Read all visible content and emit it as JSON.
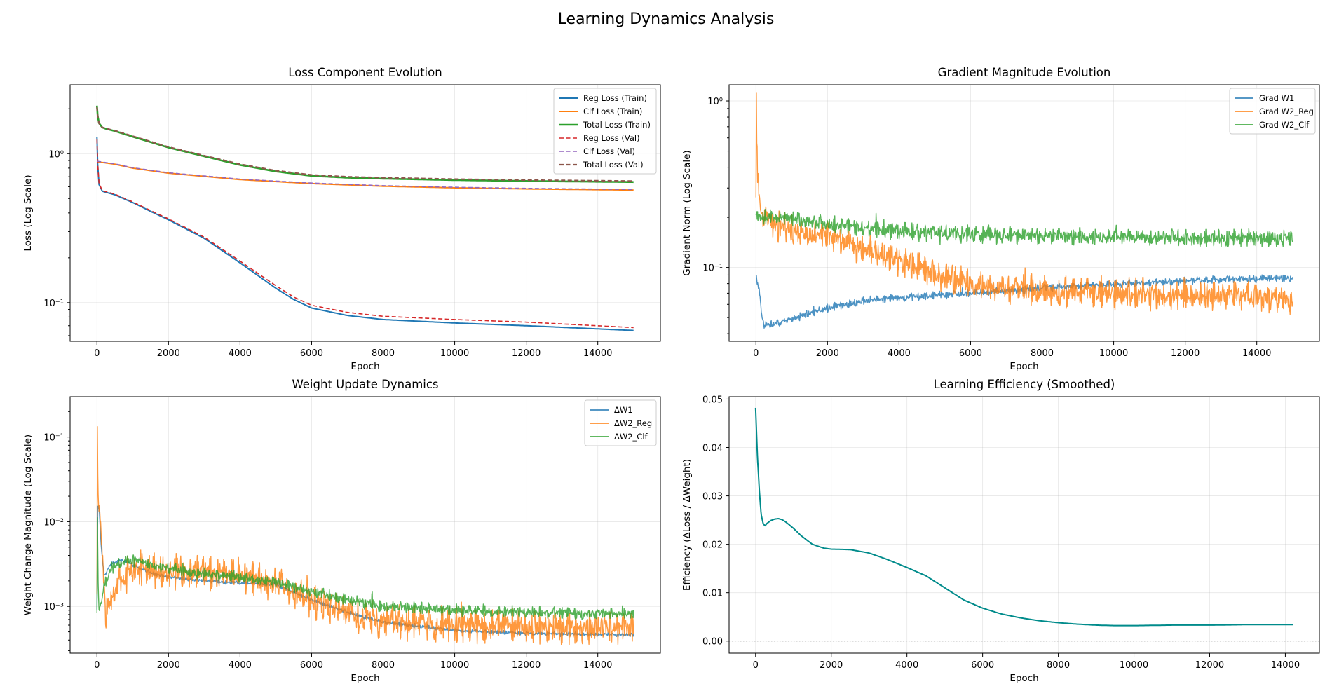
{
  "figure": {
    "title": "Learning Dynamics Analysis"
  },
  "chart_data": [
    {
      "id": "loss",
      "type": "line",
      "title": "Loss Component Evolution",
      "xlabel": "Epoch",
      "ylabel": "Loss (Log Scale)",
      "yscale": "log",
      "xlim": [
        -750,
        15750
      ],
      "ylim": [
        0.055,
        2.9
      ],
      "xticks": [
        0,
        2000,
        4000,
        6000,
        8000,
        10000,
        12000,
        14000
      ],
      "yticks": [
        {
          "value": 0.1,
          "label": "10⁻¹"
        },
        {
          "value": 1,
          "label": "10⁰"
        }
      ],
      "grid": true,
      "legend_position": "top-right",
      "series": [
        {
          "name": "Reg Loss (Train)",
          "color": "#1f77b4",
          "style": "solid",
          "width": 2,
          "x": [
            0,
            20,
            60,
            150,
            200,
            500,
            1000,
            1500,
            2000,
            3000,
            4000,
            5000,
            5500,
            6000,
            7000,
            8000,
            10000,
            12000,
            15000
          ],
          "y": [
            1.3,
            0.85,
            0.62,
            0.56,
            0.555,
            0.53,
            0.47,
            0.41,
            0.36,
            0.27,
            0.185,
            0.125,
            0.105,
            0.092,
            0.082,
            0.077,
            0.073,
            0.07,
            0.065
          ]
        },
        {
          "name": "Clf Loss (Train)",
          "color": "#ff7f0e",
          "style": "solid",
          "width": 2,
          "x": [
            0,
            200,
            500,
            1000,
            2000,
            4000,
            6000,
            8000,
            10000,
            12000,
            15000
          ],
          "y": [
            0.88,
            0.87,
            0.85,
            0.8,
            0.74,
            0.67,
            0.63,
            0.605,
            0.59,
            0.58,
            0.57
          ]
        },
        {
          "name": "Total Loss (Train)",
          "color": "#2ca02c",
          "style": "solid",
          "width": 2.6,
          "x": [
            0,
            20,
            60,
            150,
            250,
            500,
            1000,
            2000,
            3000,
            4000,
            5000,
            6000,
            7000,
            8000,
            10000,
            12000,
            15000
          ],
          "y": [
            2.1,
            1.8,
            1.6,
            1.5,
            1.47,
            1.42,
            1.3,
            1.1,
            0.96,
            0.84,
            0.76,
            0.71,
            0.69,
            0.68,
            0.665,
            0.655,
            0.645
          ]
        },
        {
          "name": "Reg Loss (Val)",
          "color": "#d62728",
          "style": "dashed",
          "width": 1.6,
          "x": [
            0,
            20,
            60,
            150,
            200,
            500,
            1000,
            1500,
            2000,
            3000,
            4000,
            5000,
            5500,
            6000,
            7000,
            8000,
            10000,
            12000,
            15000
          ],
          "y": [
            1.25,
            0.86,
            0.63,
            0.565,
            0.56,
            0.535,
            0.475,
            0.415,
            0.365,
            0.275,
            0.19,
            0.13,
            0.109,
            0.096,
            0.086,
            0.081,
            0.077,
            0.074,
            0.068
          ]
        },
        {
          "name": "Clf Loss (Val)",
          "color": "#9467bd",
          "style": "dashed",
          "width": 1.6,
          "x": [
            0,
            200,
            500,
            1000,
            2000,
            4000,
            6000,
            8000,
            10000,
            12000,
            15000
          ],
          "y": [
            0.89,
            0.875,
            0.855,
            0.805,
            0.745,
            0.675,
            0.635,
            0.61,
            0.595,
            0.585,
            0.575
          ]
        },
        {
          "name": "Total Loss (Val)",
          "color": "#8c564b",
          "style": "dashed",
          "width": 2.2,
          "x": [
            0,
            20,
            60,
            150,
            250,
            500,
            1000,
            2000,
            3000,
            4000,
            5000,
            6000,
            7000,
            8000,
            10000,
            12000,
            15000
          ],
          "y": [
            2.05,
            1.78,
            1.6,
            1.5,
            1.475,
            1.43,
            1.31,
            1.11,
            0.97,
            0.85,
            0.77,
            0.72,
            0.7,
            0.69,
            0.675,
            0.665,
            0.655
          ]
        }
      ]
    },
    {
      "id": "grad",
      "type": "line",
      "title": "Gradient Magnitude Evolution",
      "xlabel": "Epoch",
      "ylabel": "Gradient Norm (Log Scale)",
      "yscale": "log",
      "xlim": [
        -750,
        15750
      ],
      "ylim": [
        0.036,
        1.25
      ],
      "xticks": [
        0,
        2000,
        4000,
        6000,
        8000,
        10000,
        12000,
        14000
      ],
      "yticks": [
        {
          "value": 0.1,
          "label": "10⁻¹"
        },
        {
          "value": 1,
          "label": "10⁰"
        }
      ],
      "grid": true,
      "legend_position": "top-right",
      "series": [
        {
          "name": "Grad W1",
          "color": "#1f77b4",
          "style": "solid",
          "width": 1.4,
          "opacity": 0.8,
          "x": [
            0,
            50,
            100,
            150,
            200,
            300,
            500,
            1000,
            2000,
            3000,
            4000,
            5000,
            6000,
            8000,
            10000,
            12000,
            15000
          ],
          "y": [
            0.088,
            0.08,
            0.07,
            0.055,
            0.046,
            0.045,
            0.046,
            0.049,
            0.057,
            0.063,
            0.066,
            0.068,
            0.07,
            0.075,
            0.079,
            0.083,
            0.087
          ],
          "noise": 0.04
        },
        {
          "name": "Grad W2_Reg",
          "color": "#ff7f0e",
          "style": "solid",
          "width": 1.4,
          "opacity": 0.8,
          "x": [
            0,
            10,
            20,
            40,
            70,
            100,
            200,
            500,
            1000,
            2000,
            3000,
            4000,
            5000,
            6000,
            7000,
            8000,
            10000,
            12000,
            15000
          ],
          "y": [
            0.25,
            1.05,
            0.7,
            0.4,
            0.3,
            0.24,
            0.2,
            0.18,
            0.17,
            0.155,
            0.13,
            0.11,
            0.09,
            0.08,
            0.075,
            0.072,
            0.07,
            0.068,
            0.066
          ],
          "noise": 0.16
        },
        {
          "name": "Grad W2_Clf",
          "color": "#2ca02c",
          "style": "solid",
          "width": 1.4,
          "opacity": 0.8,
          "x": [
            0,
            500,
            1000,
            2000,
            4000,
            6000,
            8000,
            10000,
            12000,
            15000
          ],
          "y": [
            0.2,
            0.2,
            0.195,
            0.18,
            0.165,
            0.158,
            0.155,
            0.152,
            0.15,
            0.15
          ],
          "noise": 0.09
        }
      ]
    },
    {
      "id": "weight",
      "type": "line",
      "title": "Weight Update Dynamics",
      "xlabel": "Epoch",
      "ylabel": "Weight Change Magnitude (Log Scale)",
      "yscale": "log",
      "xlim": [
        -750,
        15750
      ],
      "ylim": [
        0.00028,
        0.3
      ],
      "xticks": [
        0,
        2000,
        4000,
        6000,
        8000,
        10000,
        12000,
        14000
      ],
      "yticks": [
        {
          "value": 0.001,
          "label": "10⁻³"
        },
        {
          "value": 0.01,
          "label": "10⁻²"
        },
        {
          "value": 0.1,
          "label": "10⁻¹"
        }
      ],
      "grid": true,
      "legend_position": "top-right",
      "series": [
        {
          "name": "ΔW1",
          "color": "#1f77b4",
          "style": "solid",
          "width": 1.4,
          "opacity": 0.8,
          "x": [
            0,
            20,
            60,
            120,
            200,
            400,
            700,
            1000,
            1500,
            2000,
            3000,
            4000,
            5000,
            6000,
            7000,
            8000,
            10000,
            12000,
            15000
          ],
          "y": [
            0.0009,
            0.016,
            0.014,
            0.005,
            0.0023,
            0.0032,
            0.0035,
            0.0031,
            0.0025,
            0.0022,
            0.002,
            0.0019,
            0.0018,
            0.0012,
            0.00085,
            0.00065,
            0.00052,
            0.00048,
            0.00046
          ],
          "noise": 0.04
        },
        {
          "name": "ΔW2_Reg",
          "color": "#ff7f0e",
          "style": "solid",
          "width": 1.4,
          "opacity": 0.8,
          "x": [
            0,
            10,
            20,
            40,
            80,
            150,
            250,
            400,
            600,
            1000,
            1500,
            2000,
            3000,
            4000,
            5000,
            6000,
            7000,
            8000,
            10000,
            12000,
            15000
          ],
          "y": [
            0.0012,
            0.22,
            0.03,
            0.016,
            0.012,
            0.004,
            0.0009,
            0.0012,
            0.0019,
            0.0028,
            0.0027,
            0.0026,
            0.0025,
            0.0023,
            0.0018,
            0.0012,
            0.00085,
            0.00065,
            0.0006,
            0.00058,
            0.00056
          ],
          "noise": 0.35
        },
        {
          "name": "ΔW2_Clf",
          "color": "#2ca02c",
          "style": "solid",
          "width": 1.4,
          "opacity": 0.8,
          "x": [
            0,
            10,
            30,
            60,
            120,
            200,
            400,
            700,
            1000,
            2000,
            3000,
            4000,
            5000,
            6000,
            7000,
            8000,
            10000,
            12000,
            15000
          ],
          "y": [
            0.0008,
            0.014,
            0.0025,
            0.0009,
            0.0011,
            0.0018,
            0.0028,
            0.0033,
            0.0035,
            0.0028,
            0.0024,
            0.0022,
            0.0019,
            0.0015,
            0.0012,
            0.001,
            0.0009,
            0.00085,
            0.00082
          ],
          "noise": 0.12
        }
      ]
    },
    {
      "id": "eff",
      "type": "line",
      "title": "Learning Efficiency (Smoothed)",
      "xlabel": "Epoch",
      "ylabel": "Efficiency (ΔLoss / ΔWeight)",
      "yscale": "linear",
      "xlim": [
        -700,
        14900
      ],
      "ylim": [
        -0.0025,
        0.0505
      ],
      "xticks": [
        0,
        2000,
        4000,
        6000,
        8000,
        10000,
        12000,
        14000
      ],
      "yticks": [
        {
          "value": 0,
          "label": "0.00"
        },
        {
          "value": 0.01,
          "label": "0.01"
        },
        {
          "value": 0.02,
          "label": "0.02"
        },
        {
          "value": 0.03,
          "label": "0.03"
        },
        {
          "value": 0.04,
          "label": "0.04"
        },
        {
          "value": 0.05,
          "label": "0.05"
        }
      ],
      "grid": true,
      "hline": 0,
      "series": [
        {
          "name": "",
          "color": "#008b8b",
          "style": "solid",
          "width": 2,
          "x": [
            0,
            50,
            100,
            150,
            200,
            250,
            300,
            400,
            500,
            600,
            700,
            800,
            1000,
            1200,
            1500,
            1800,
            2000,
            2500,
            3000,
            3500,
            4000,
            4500,
            5000,
            5500,
            6000,
            6500,
            7000,
            7500,
            8000,
            8500,
            9000,
            9500,
            10000,
            11000,
            12000,
            13000,
            14000,
            14200
          ],
          "y": [
            0.0482,
            0.038,
            0.031,
            0.026,
            0.0243,
            0.0238,
            0.0243,
            0.0249,
            0.0252,
            0.0253,
            0.0251,
            0.0246,
            0.0233,
            0.0218,
            0.02,
            0.0192,
            0.019,
            0.0189,
            0.0182,
            0.0168,
            0.0152,
            0.0135,
            0.011,
            0.0085,
            0.0068,
            0.0056,
            0.0048,
            0.0042,
            0.0038,
            0.0035,
            0.0033,
            0.0032,
            0.0032,
            0.0033,
            0.0033,
            0.0034,
            0.0034,
            0.0034
          ]
        }
      ]
    }
  ]
}
